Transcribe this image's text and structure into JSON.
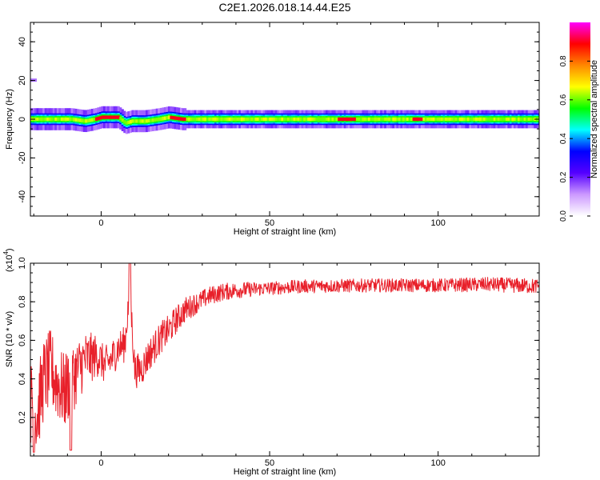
{
  "title": "C2E1.2026.018.14.44.E25",
  "chart_data": [
    {
      "type": "heatmap",
      "name": "spectrogram",
      "xlabel": "Height of straight line (km)",
      "ylabel": "Frequency (Hz)",
      "xlim": [
        -21,
        130
      ],
      "ylim": [
        -50,
        50
      ],
      "xticks": [
        "0",
        "50",
        "100"
      ],
      "xtick_values": [
        0,
        50,
        100
      ],
      "yticks": [
        "40",
        "20",
        "0",
        "-20",
        "-40"
      ],
      "ytick_values": [
        40,
        20,
        0,
        -20,
        -40
      ],
      "colorbar": {
        "label": "Normalized spectral amplitude",
        "ticks": [
          "0.0",
          "0.2",
          "0.4",
          "0.6",
          "0.8"
        ],
        "tick_values": [
          0.0,
          0.2,
          0.4,
          0.6,
          0.8
        ],
        "range": [
          0,
          1
        ],
        "colors": [
          "#ffffff",
          "#cc99ff",
          "#5500ff",
          "#0000ff",
          "#00ffff",
          "#00ff00",
          "#ffff00",
          "#ff8800",
          "#ff0000",
          "#ff00ff"
        ]
      },
      "band_center_hz": [
        [
          -21,
          0
        ],
        [
          -14,
          0
        ],
        [
          -9,
          0
        ],
        [
          -5,
          -1
        ],
        [
          -2,
          0
        ],
        [
          0,
          1
        ],
        [
          5,
          1
        ],
        [
          7,
          -2
        ],
        [
          9,
          -1
        ],
        [
          13,
          -1
        ],
        [
          17,
          0
        ],
        [
          20,
          1
        ],
        [
          24,
          0
        ],
        [
          30,
          0
        ],
        [
          130,
          0
        ]
      ],
      "band_halfwidth_hz": 3,
      "hot_segments_km": [
        [
          -2,
          5
        ],
        [
          20,
          25
        ],
        [
          70,
          75
        ],
        [
          92,
          95
        ]
      ],
      "isolated_feature": {
        "x_km": -21,
        "y_hz": 20
      }
    },
    {
      "type": "line",
      "name": "snr",
      "xlabel": "Height of straight line (km)",
      "ylabel": "SNR (10 * v/v)",
      "multiplier_label": "(x10",
      "multiplier_exp": "4",
      "multiplier_close": ")",
      "xlim": [
        -21,
        130
      ],
      "ylim": [
        0,
        1.0
      ],
      "xticks": [
        "0",
        "50",
        "100"
      ],
      "xtick_values": [
        0,
        50,
        100
      ],
      "yticks": [
        "1.0",
        "0.8",
        "0.6",
        "0.4",
        "0.2"
      ],
      "ytick_values": [
        1.0,
        0.8,
        0.6,
        0.4,
        0.2
      ],
      "color": "#e8202a",
      "trend": [
        [
          -21,
          0.28
        ],
        [
          -19,
          0.22
        ],
        [
          -17,
          0.4
        ],
        [
          -15,
          0.45
        ],
        [
          -13,
          0.38
        ],
        [
          -11,
          0.33
        ],
        [
          -9,
          0.4
        ],
        [
          -7,
          0.44
        ],
        [
          -5,
          0.5
        ],
        [
          -3,
          0.51
        ],
        [
          -1,
          0.52
        ],
        [
          1,
          0.47
        ],
        [
          3,
          0.5
        ],
        [
          5,
          0.56
        ],
        [
          7,
          0.58
        ],
        [
          8.5,
          0.86
        ],
        [
          10,
          0.44
        ],
        [
          12,
          0.45
        ],
        [
          14,
          0.52
        ],
        [
          16,
          0.57
        ],
        [
          18,
          0.62
        ],
        [
          20,
          0.65
        ],
        [
          22,
          0.7
        ],
        [
          25,
          0.76
        ],
        [
          28,
          0.79
        ],
        [
          32,
          0.83
        ],
        [
          36,
          0.85
        ],
        [
          40,
          0.86
        ],
        [
          50,
          0.87
        ],
        [
          60,
          0.88
        ],
        [
          80,
          0.885
        ],
        [
          100,
          0.885
        ],
        [
          115,
          0.89
        ],
        [
          130,
          0.88
        ]
      ],
      "noise_amplitude": [
        [
          -21,
          0.22
        ],
        [
          -10,
          0.2
        ],
        [
          0,
          0.1
        ],
        [
          10,
          0.09
        ],
        [
          20,
          0.08
        ],
        [
          30,
          0.05
        ],
        [
          50,
          0.035
        ],
        [
          100,
          0.035
        ],
        [
          130,
          0.04
        ]
      ],
      "spike": {
        "x_km": 8.5,
        "y": 1.0
      },
      "dips": [
        [
          -20,
          0.02
        ],
        [
          -9,
          0.03
        ]
      ]
    }
  ]
}
